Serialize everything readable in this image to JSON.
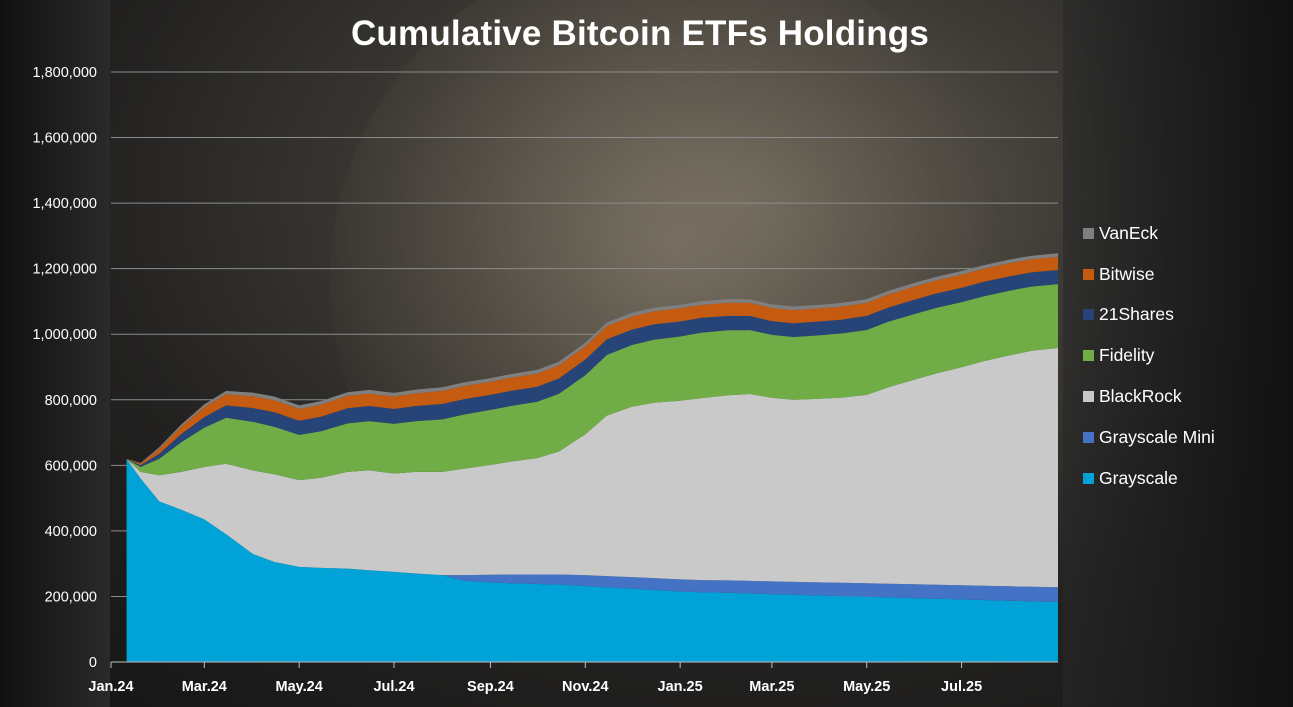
{
  "chart_data": {
    "type": "area",
    "stacked": true,
    "title": "Cumulative Bitcoin ETFs Holdings",
    "xlabel": "",
    "ylabel": "",
    "ylim": [
      0,
      1800000
    ],
    "yticks": [
      "0",
      "200,000",
      "400,000",
      "600,000",
      "800,000",
      "1,000,000",
      "1,200,000",
      "1,400,000",
      "1,600,000",
      "1,800,000"
    ],
    "xticks": [
      "Jan.24",
      "Mar.24",
      "May.24",
      "Jul.24",
      "Sep.24",
      "Nov.24",
      "Jan.25",
      "Mar.25",
      "May.25",
      "Jul.25"
    ],
    "grid": true,
    "legend_position": "right",
    "x": [
      "2024-01-11",
      "2024-01-20",
      "2024-02-01",
      "2024-02-15",
      "2024-03-01",
      "2024-03-15",
      "2024-04-01",
      "2024-04-15",
      "2024-05-01",
      "2024-05-15",
      "2024-06-01",
      "2024-06-15",
      "2024-07-01",
      "2024-07-15",
      "2024-08-01",
      "2024-08-15",
      "2024-09-01",
      "2024-09-15",
      "2024-10-01",
      "2024-10-15",
      "2024-11-01",
      "2024-11-15",
      "2024-12-01",
      "2024-12-15",
      "2025-01-01",
      "2025-01-15",
      "2025-02-01",
      "2025-02-15",
      "2025-03-01",
      "2025-03-15",
      "2025-04-01",
      "2025-04-15",
      "2025-05-01",
      "2025-05-15",
      "2025-06-01",
      "2025-06-15",
      "2025-07-01",
      "2025-07-15",
      "2025-08-01",
      "2025-08-15",
      "2025-09-01"
    ],
    "series": [
      {
        "name": "Grayscale",
        "color": "#00a2d8",
        "values": [
          619000,
          560000,
          490000,
          465000,
          435000,
          390000,
          330000,
          305000,
          290000,
          287000,
          285000,
          280000,
          275000,
          270000,
          265000,
          248000,
          243000,
          240000,
          238000,
          236000,
          232000,
          228000,
          224000,
          220000,
          215000,
          213000,
          211000,
          209000,
          207000,
          205000,
          203000,
          201000,
          199000,
          197000,
          195000,
          193000,
          191000,
          189000,
          187000,
          185000,
          183000
        ]
      },
      {
        "name": "Grayscale Mini",
        "color": "#4472c4",
        "values": [
          0,
          0,
          0,
          0,
          0,
          0,
          0,
          0,
          0,
          0,
          0,
          0,
          0,
          0,
          0,
          17000,
          23000,
          27000,
          29000,
          31000,
          33000,
          34000,
          35000,
          36000,
          37000,
          37000,
          38000,
          38500,
          39000,
          39500,
          40000,
          40500,
          41000,
          41500,
          42000,
          42500,
          43000,
          43500,
          44000,
          44500,
          45000
        ]
      },
      {
        "name": "BlackRock",
        "color": "#c9c9c9",
        "values": [
          500,
          20000,
          80000,
          115000,
          160000,
          215000,
          255000,
          268000,
          265000,
          275000,
          295000,
          305000,
          300000,
          310000,
          315000,
          325000,
          335000,
          345000,
          355000,
          375000,
          430000,
          490000,
          520000,
          535000,
          545000,
          555000,
          565000,
          570000,
          560000,
          555000,
          560000,
          565000,
          575000,
          600000,
          625000,
          645000,
          665000,
          685000,
          705000,
          720000,
          730000
        ]
      },
      {
        "name": "Fidelity",
        "color": "#70ad47",
        "values": [
          300,
          15000,
          50000,
          90000,
          120000,
          140000,
          148000,
          145000,
          138000,
          142000,
          148000,
          150000,
          152000,
          155000,
          160000,
          165000,
          168000,
          170000,
          172000,
          176000,
          180000,
          185000,
          188000,
          192000,
          196000,
          200000,
          198000,
          195000,
          192000,
          192000,
          194000,
          196000,
          198000,
          200000,
          200000,
          200000,
          199000,
          198000,
          197000,
          196000,
          195000
        ]
      },
      {
        "name": "21Shares",
        "color": "#264478",
        "values": [
          200,
          5000,
          15000,
          25000,
          32000,
          38000,
          42000,
          44000,
          43000,
          44000,
          46000,
          46000,
          45000,
          46000,
          47000,
          47000,
          46000,
          46000,
          46000,
          47000,
          48000,
          48000,
          47000,
          47000,
          46000,
          45000,
          44000,
          43000,
          42000,
          42000,
          42000,
          42000,
          43000,
          43000,
          44000,
          44000,
          44000,
          44000,
          44000,
          43000,
          43000
        ]
      },
      {
        "name": "Bitwise",
        "color": "#c55a11",
        "values": [
          100,
          5000,
          15000,
          22000,
          30000,
          34000,
          36000,
          37000,
          36000,
          37000,
          38000,
          38000,
          38000,
          39000,
          40000,
          40000,
          40000,
          40000,
          40000,
          40000,
          40000,
          40000,
          40000,
          40000,
          40000,
          40000,
          40000,
          40000,
          40000,
          40000,
          40000,
          40000,
          40000,
          40000,
          40000,
          40000,
          40000,
          40000,
          40000,
          40000,
          40000
        ]
      },
      {
        "name": "VanEck",
        "color": "#7f7f7f",
        "values": [
          100,
          2000,
          5000,
          7000,
          9000,
          10000,
          11000,
          11000,
          11000,
          11000,
          11000,
          11000,
          11000,
          11000,
          11000,
          11000,
          11000,
          11000,
          11000,
          11000,
          11000,
          11000,
          11000,
          11000,
          11000,
          11000,
          11000,
          11000,
          11000,
          11000,
          11000,
          11000,
          11000,
          11000,
          11000,
          11000,
          11000,
          11000,
          11000,
          11000,
          11000
        ]
      }
    ]
  }
}
